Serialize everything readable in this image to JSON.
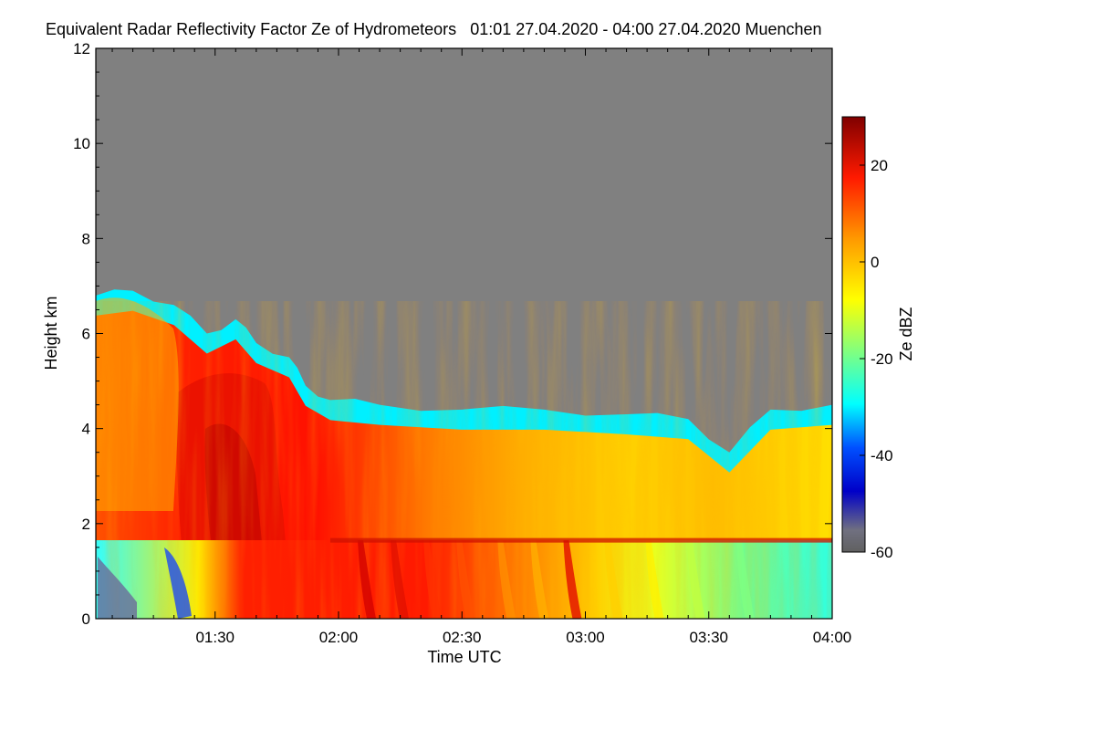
{
  "chart_data": {
    "type": "heatmap",
    "title": "Equivalent Radar Reflectivity Factor Ze of Hydrometeors",
    "time_range_text": "01:01 27.04.2020 - 04:00 27.04.2020",
    "location": "Muenchen",
    "xlabel": "Time UTC",
    "ylabel": "Height km",
    "x_tick_labels": [
      "01:30",
      "02:00",
      "02:30",
      "03:00",
      "03:30",
      "04:00"
    ],
    "x_ticks_minutes": [
      90,
      120,
      150,
      180,
      210,
      240
    ],
    "xlim_minutes": [
      61,
      240
    ],
    "y_ticks": [
      0,
      2,
      4,
      6,
      8,
      10,
      12
    ],
    "ylim": [
      0,
      12
    ],
    "colorbar": {
      "label": "Ze dBZ",
      "ticks": [
        20,
        0,
        -20,
        -40,
        -60
      ],
      "range": [
        -60,
        30
      ],
      "colormap": [
        "#606060",
        "#0000c8",
        "#0050ff",
        "#00ffff",
        "#ffff00",
        "#ff9900",
        "#ff0000",
        "#800000"
      ]
    },
    "no_signal_color": "#808080",
    "echo_top_km": [
      {
        "t": 61,
        "h": 6.8
      },
      {
        "t": 70,
        "h": 6.9
      },
      {
        "t": 80,
        "h": 6.6
      },
      {
        "t": 88,
        "h": 6.0
      },
      {
        "t": 95,
        "h": 6.3
      },
      {
        "t": 100,
        "h": 5.8
      },
      {
        "t": 108,
        "h": 5.5
      },
      {
        "t": 112,
        "h": 4.9
      },
      {
        "t": 118,
        "h": 4.6
      },
      {
        "t": 130,
        "h": 4.5
      },
      {
        "t": 150,
        "h": 4.4
      },
      {
        "t": 170,
        "h": 4.4
      },
      {
        "t": 190,
        "h": 4.3
      },
      {
        "t": 205,
        "h": 4.2
      },
      {
        "t": 215,
        "h": 3.5
      },
      {
        "t": 225,
        "h": 4.4
      },
      {
        "t": 240,
        "h": 4.5
      }
    ],
    "bright_band_km": 1.65,
    "max_reflectivity_dbz": 25
  }
}
